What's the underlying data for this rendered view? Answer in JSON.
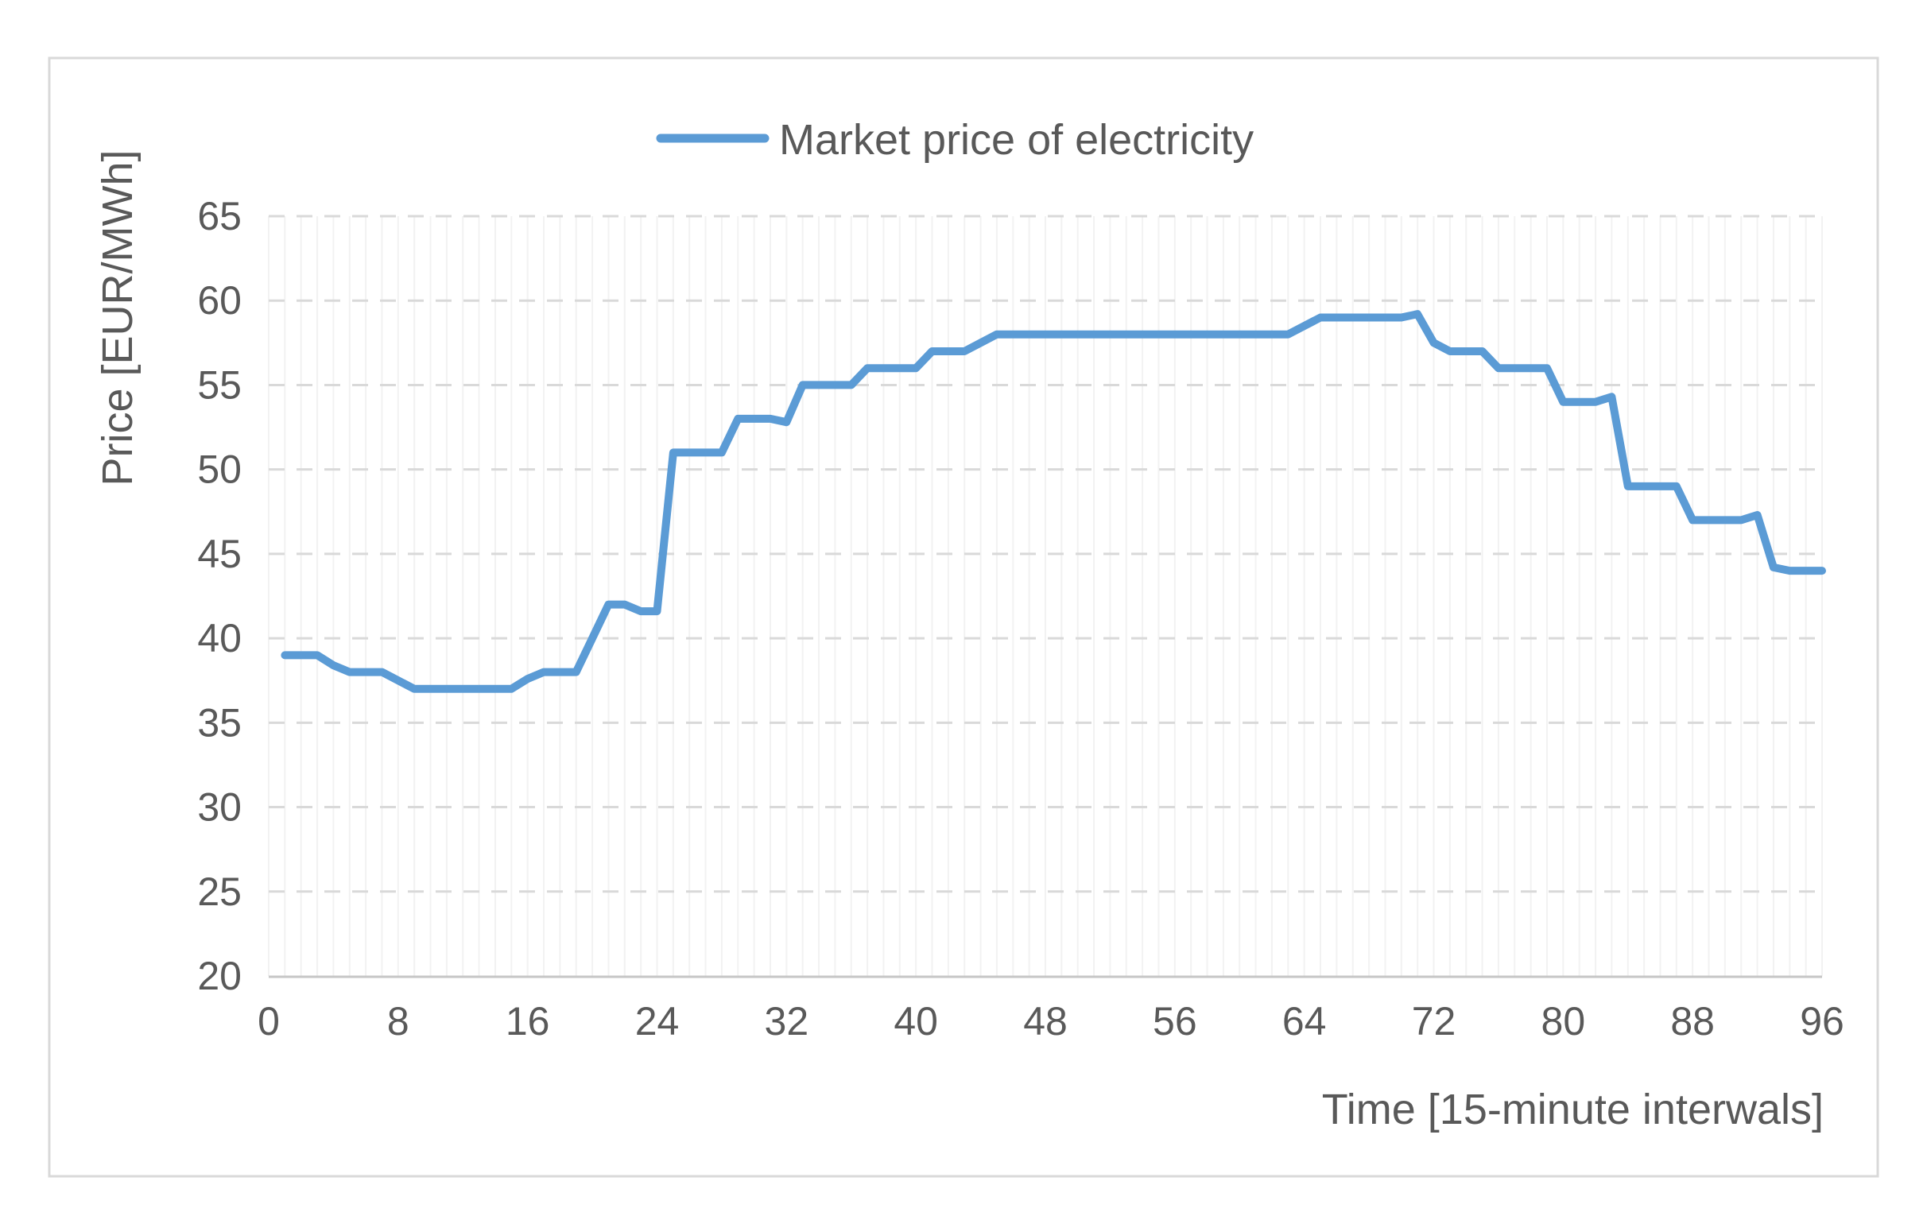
{
  "chart_data": {
    "type": "line",
    "title": "",
    "legend": "Market price of electricity",
    "legend_position": "top-center",
    "xlabel": "Time [15-minute interwals]",
    "ylabel": "Price [EUR/MWh]",
    "x_axis": {
      "min": 0,
      "max": 96,
      "tick_step": 8,
      "minor_gridline_step": 1,
      "tick_labels": [
        0,
        8,
        16,
        24,
        32,
        40,
        48,
        56,
        64,
        72,
        80,
        88,
        96
      ]
    },
    "y_axis": {
      "min": 20,
      "max": 65,
      "tick_step": 5,
      "tick_labels": [
        20,
        25,
        30,
        35,
        40,
        45,
        50,
        55,
        60,
        65
      ]
    },
    "grid": {
      "horizontal_major": "dashed",
      "vertical_minor": "solid"
    },
    "series": [
      {
        "name": "Market price of electricity",
        "x_start": 1,
        "x_step": 1,
        "values": [
          39,
          39,
          39,
          38.4,
          38,
          38,
          38,
          37.5,
          37,
          37,
          37,
          37,
          37,
          37,
          37,
          37.6,
          38,
          38,
          38,
          40,
          42,
          42,
          41.6,
          41.6,
          51,
          51,
          51,
          51,
          53,
          53,
          53,
          52.8,
          55,
          55,
          55,
          55,
          56,
          56,
          56,
          56,
          57,
          57,
          57,
          57.5,
          58,
          58,
          58,
          58,
          58,
          58,
          58,
          58,
          58,
          58,
          58,
          58,
          58,
          58,
          58,
          58,
          58,
          58,
          58,
          58.5,
          59,
          59,
          59,
          59,
          59,
          59,
          59.2,
          57.5,
          57,
          57,
          57,
          56,
          56,
          56,
          56,
          54,
          54,
          54,
          54.3,
          49,
          49,
          49,
          49,
          47,
          47,
          47,
          47,
          47.3,
          44.2,
          44,
          44,
          44
        ]
      }
    ],
    "colors": {
      "line": "#5B9BD5",
      "major_gridline": "#D9D9D9",
      "minor_gridline": "#F2F2F2",
      "axis_line": "#C6C6C6",
      "text": "#595959",
      "chart_border": "#D9D9D9",
      "background": "#FFFFFF"
    }
  }
}
